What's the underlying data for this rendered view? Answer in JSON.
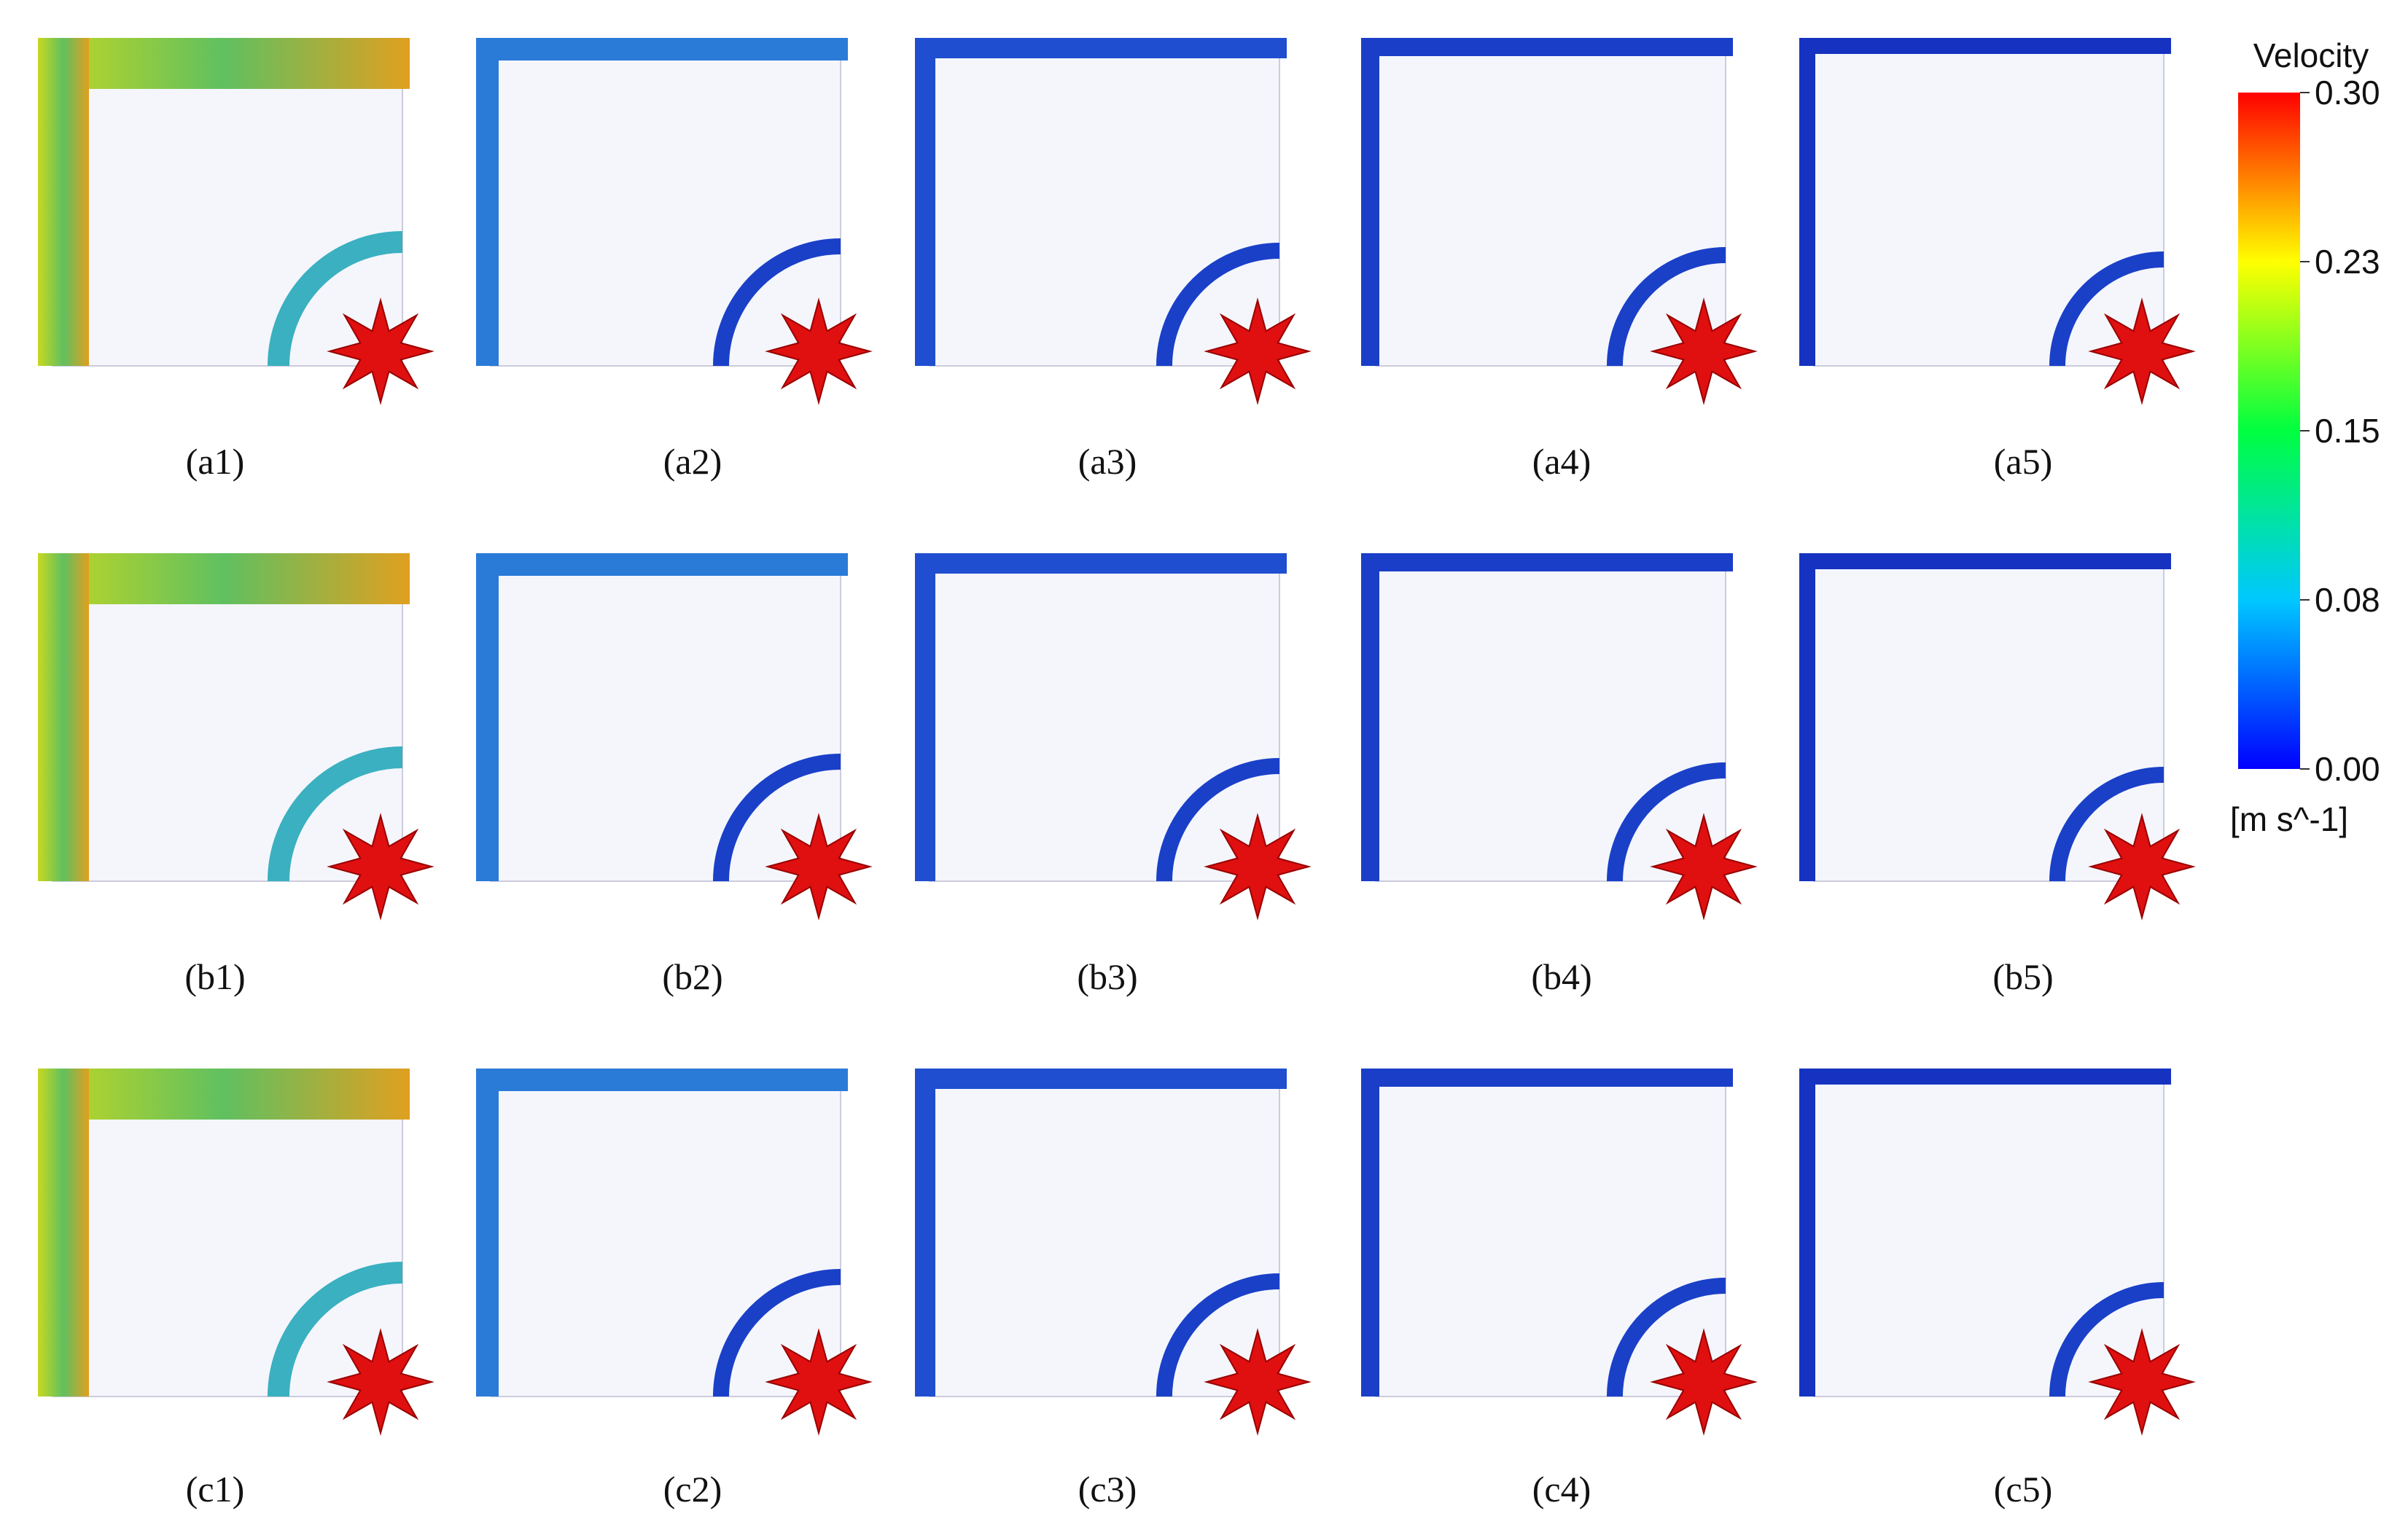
{
  "panels": [
    {
      "label": "(a1)"
    },
    {
      "label": "(a2)"
    },
    {
      "label": "(a3)"
    },
    {
      "label": "(a4)"
    },
    {
      "label": "(a5)"
    },
    {
      "label": "(b1)"
    },
    {
      "label": "(b2)"
    },
    {
      "label": "(b3)"
    },
    {
      "label": "(b4)"
    },
    {
      "label": "(b5)"
    },
    {
      "label": "(c1)"
    },
    {
      "label": "(c2)"
    },
    {
      "label": "(c3)"
    },
    {
      "label": "(c4)"
    },
    {
      "label": "(c5)"
    }
  ],
  "colorbar": {
    "title": "Velocity",
    "unit": "[m s^-1]",
    "range": [
      0,
      0.3
    ],
    "ticks": [
      {
        "value": 0.3,
        "label": "0.30"
      },
      {
        "value": 0.225,
        "label": "0.23"
      },
      0.15,
      {
        "value": 0.075,
        "label": "0.08"
      },
      {
        "value": 0,
        "label": "0.00"
      }
    ]
  }
}
